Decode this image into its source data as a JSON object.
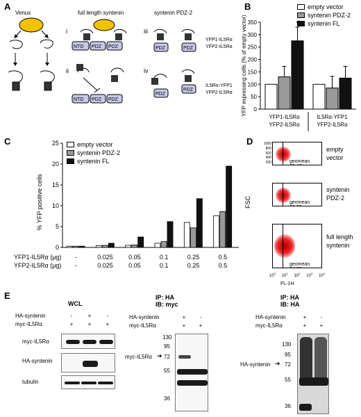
{
  "panels": {
    "A": "A",
    "B": "B",
    "C": "C",
    "D": "D",
    "E": "E"
  },
  "panelA": {
    "venus": "Venus",
    "col1_title": "full length syntenin",
    "col2_title": "syntenin PDZ-2",
    "roman": [
      "i",
      "ii",
      "iii",
      "iv"
    ],
    "row1_caption_1": "YFP1-IL5Rα",
    "row1_caption_2": "YFP2-IL5Rα",
    "row2_caption_1": "IL5Rα-YFP1",
    "row2_caption_2": "YFP2-IL5Rα",
    "domain_ntd": "NTD",
    "domain_pdz": "PDZ"
  },
  "panelB": {
    "legend": [
      "empty vector",
      "syntenin PDZ-2",
      "syntenin FL"
    ],
    "star": "*",
    "group_labels": [
      [
        "YFP1-IL5Rα",
        "YFP2-IL5Rα"
      ],
      [
        "IL5Rα-YFP1",
        "YFP2-IL5Rα"
      ]
    ]
  },
  "panelC": {
    "legend": [
      "empty vector",
      "syntenin PDZ-2",
      "syntenin FL"
    ],
    "row1_label": "YFP1-IL5Rα (μg)",
    "row2_label": "YFP2-IL5Rα (μg)",
    "row1_values": [
      "-",
      "0.025",
      "0.05",
      "0.1",
      "0.25",
      "0.5"
    ],
    "row2_values": [
      "-",
      "0.025",
      "0.05",
      "0.1",
      "0.25",
      "0.5"
    ]
  },
  "panelD": {
    "ylabel": "FSC",
    "xlabel": "FL-1H",
    "yticks": [
      "1000",
      "800",
      "600",
      "400",
      "200",
      "0"
    ],
    "xticks": [
      "10",
      "10",
      "10",
      "10",
      "10"
    ],
    "xtick_exps": [
      "0",
      "1",
      "2",
      "3",
      "4"
    ],
    "plots": [
      {
        "geomean": "geomean 15.47",
        "label": [
          "empty",
          "vector"
        ]
      },
      {
        "geomean": "geomean 18.33",
        "label": [
          "syntenin",
          "PDZ-2"
        ]
      },
      {
        "geomean": "geomean 34.03",
        "label": [
          "full length",
          "syntenin"
        ]
      }
    ]
  },
  "panelE": {
    "wcl_title": "WCL",
    "blot2_title": [
      "IP: HA",
      "IB: myc"
    ],
    "blot3_title": [
      "IP: HA",
      "IB: HA"
    ],
    "row_ha": "HA-syntenin",
    "row_myc": "myc-IL5Rα",
    "signs_ha": [
      "-",
      "+",
      "-"
    ],
    "signs_myc": [
      "+",
      "+",
      "+"
    ],
    "signs_ha_2": [
      "+",
      "-"
    ],
    "signs_myc_2": [
      "+",
      "+"
    ],
    "wcl_rows": [
      "myc-IL5Rα",
      "HA-syntenin",
      "tubulin"
    ],
    "blot2_markers": [
      "130",
      "95",
      "72",
      "55",
      "36"
    ],
    "blot2_arrow": "myc-IL5Rα",
    "blot3_markers": [
      "130",
      "95",
      "72",
      "55",
      "36"
    ],
    "blot3_arrow": "HA-syntenin"
  },
  "chart_data": [
    {
      "type": "bar",
      "panel": "B",
      "ylabel": "YFP expressing cells (% of empty vector)",
      "ylim": [
        0,
        350
      ],
      "yticks": [
        0,
        50,
        100,
        150,
        200,
        250,
        300,
        350
      ],
      "categories": [
        "YFP1-IL5Rα / YFP2-IL5Rα",
        "IL5Rα-YFP1 / YFP2-IL5Rα"
      ],
      "series": [
        {
          "name": "empty vector",
          "color": "#ffffff",
          "values": [
            100,
            100
          ],
          "errors": [
            0,
            0
          ]
        },
        {
          "name": "syntenin PDZ-2",
          "color": "#9a9a9a",
          "values": [
            130,
            85
          ],
          "errors": [
            42,
            47
          ]
        },
        {
          "name": "syntenin FL",
          "color": "#111111",
          "values": [
            275,
            125
          ],
          "errors": [
            55,
            47
          ]
        }
      ],
      "annotations": [
        "*"
      ],
      "legend_position": "top-right"
    },
    {
      "type": "bar",
      "panel": "C",
      "ylabel": "% YFP positive cells",
      "ylim": [
        0,
        25
      ],
      "yticks": [
        0,
        5,
        10,
        15,
        20,
        25
      ],
      "categories": [
        "-",
        "0.025",
        "0.05",
        "0.1",
        "0.25",
        "0.5"
      ],
      "series": [
        {
          "name": "empty vector",
          "color": "#ffffff",
          "values": [
            0.3,
            0.4,
            0.5,
            1.0,
            6.0,
            7.6
          ]
        },
        {
          "name": "syntenin PDZ-2",
          "color": "#9a9a9a",
          "values": [
            0.3,
            0.5,
            0.6,
            1.4,
            4.7,
            8.6
          ]
        },
        {
          "name": "syntenin FL",
          "color": "#111111",
          "values": [
            0.3,
            1.0,
            2.5,
            6.2,
            11.7,
            19.5
          ]
        }
      ],
      "legend_position": "top-left"
    }
  ]
}
